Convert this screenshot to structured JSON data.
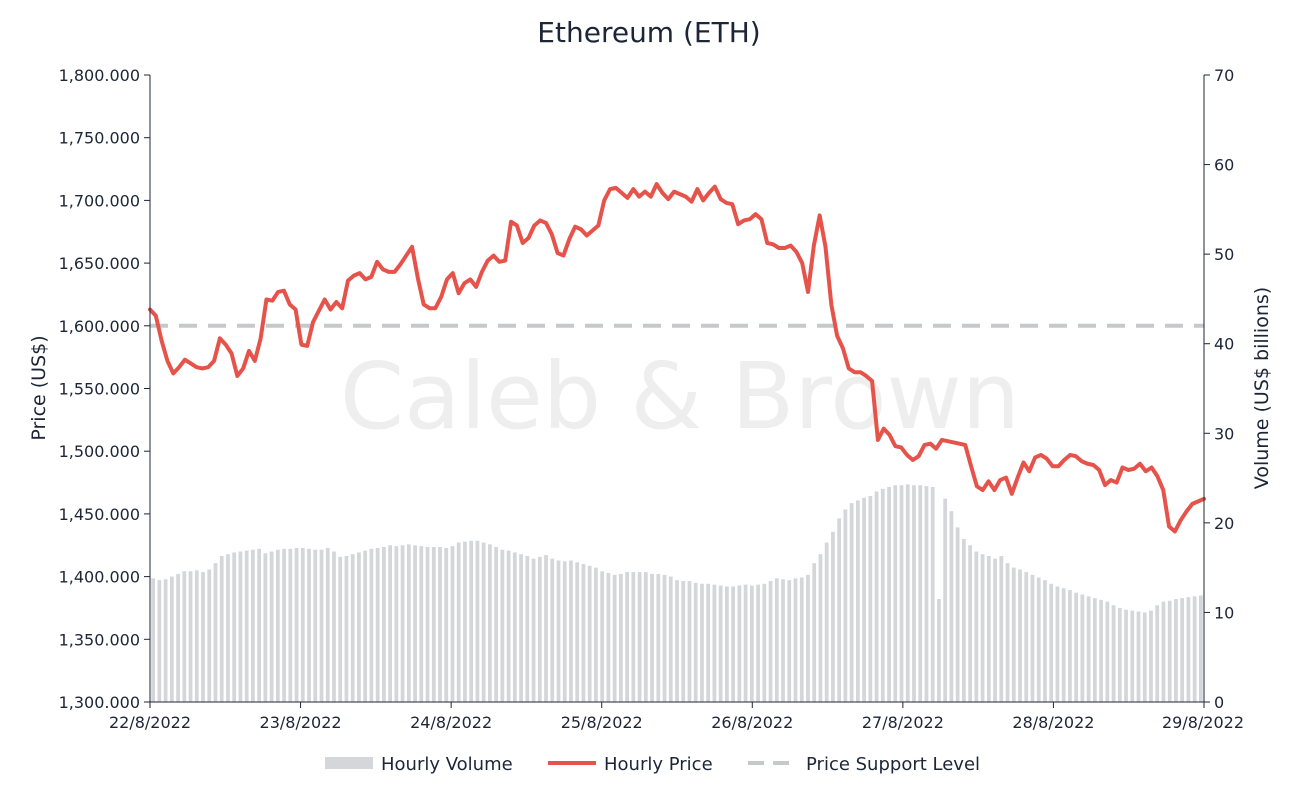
{
  "chart_data": {
    "type": "line",
    "title": "Ethereum (ETH)",
    "watermark": "Caleb & Brown",
    "y_left_label": "Price (US$)",
    "y_right_label": "Volume (US$ billions)",
    "y_left_range": [
      1300,
      1800
    ],
    "y_left_ticks": [
      "1,800.000",
      "1,750.000",
      "1,700.000",
      "1,650.000",
      "1,600.000",
      "1,550.000",
      "1,500.000",
      "1,450.000",
      "1,400.000",
      "1,350.000",
      "1,300.000"
    ],
    "y_right_range": [
      0,
      70
    ],
    "y_right_ticks": [
      "70",
      "60",
      "50",
      "40",
      "30",
      "20",
      "10",
      "0"
    ],
    "x_ticks": [
      "22/8/2022",
      "23/8/2022",
      "24/8/2022",
      "25/8/2022",
      "26/8/2022",
      "27/8/2022",
      "28/8/2022",
      "29/8/2022"
    ],
    "support_level": 1600,
    "colors": {
      "price": "#e5534b",
      "volume": "#d4d6da",
      "support": "#c6c8cc",
      "text": "#1c2636"
    },
    "series": [
      {
        "name": "Hourly Price",
        "values": [
          1613,
          1608,
          1588,
          1572,
          1562,
          1567,
          1573,
          1570,
          1567,
          1566,
          1567,
          1572,
          1590,
          1585,
          1578,
          1560,
          1566,
          1580,
          1572,
          1590,
          1621,
          1620,
          1627,
          1628,
          1617,
          1613,
          1585,
          1584,
          1603,
          1612,
          1621,
          1613,
          1619,
          1614,
          1636,
          1640,
          1642,
          1637,
          1639,
          1651,
          1645,
          1643,
          1643,
          1649,
          1656,
          1663,
          1638,
          1617,
          1614,
          1614,
          1623,
          1637,
          1642,
          1626,
          1634,
          1637,
          1631,
          1643,
          1652,
          1656,
          1651,
          1652,
          1683,
          1680,
          1666,
          1670,
          1680,
          1684,
          1682,
          1673,
          1658,
          1656,
          1669,
          1679,
          1677,
          1672,
          1676,
          1680,
          1700,
          1709,
          1710,
          1706,
          1702,
          1709,
          1703,
          1707,
          1703,
          1713,
          1706,
          1701,
          1707,
          1705,
          1703,
          1699,
          1709,
          1700,
          1706,
          1711,
          1701,
          1698,
          1697,
          1681,
          1684,
          1685,
          1689,
          1685,
          1666,
          1665,
          1662,
          1662,
          1664,
          1659,
          1650,
          1627,
          1664,
          1688,
          1663,
          1617,
          1592,
          1582,
          1566,
          1563,
          1563,
          1560,
          1556,
          1509,
          1518,
          1513,
          1504,
          1503,
          1497,
          1493,
          1496,
          1505,
          1506,
          1502,
          1509,
          1508,
          1507,
          1506,
          1505,
          1488,
          1472,
          1469,
          1476,
          1469,
          1477,
          1479,
          1466,
          1479,
          1491,
          1484,
          1495,
          1497,
          1494,
          1488,
          1488,
          1493,
          1497,
          1496,
          1492,
          1490,
          1489,
          1485,
          1473,
          1477,
          1475,
          1487,
          1485,
          1486,
          1490,
          1484,
          1487,
          1480,
          1469,
          1440,
          1436,
          1445,
          1452,
          1458,
          1460,
          1462
        ]
      },
      {
        "name": "Hourly Volume",
        "values": [
          13.8,
          13.6,
          13.7,
          14.0,
          14.3,
          14.6,
          14.6,
          14.7,
          14.5,
          14.8,
          15.5,
          16.3,
          16.5,
          16.7,
          16.8,
          16.9,
          17.0,
          17.1,
          16.6,
          16.8,
          17.0,
          17.1,
          17.1,
          17.2,
          17.2,
          17.1,
          17.0,
          17.0,
          17.2,
          16.8,
          16.2,
          16.3,
          16.5,
          16.7,
          16.9,
          17.1,
          17.2,
          17.3,
          17.5,
          17.4,
          17.5,
          17.6,
          17.5,
          17.4,
          17.3,
          17.3,
          17.3,
          17.2,
          17.4,
          17.8,
          17.9,
          18.0,
          18.0,
          17.8,
          17.6,
          17.3,
          17.0,
          16.9,
          16.7,
          16.5,
          16.3,
          16.0,
          16.2,
          16.4,
          16.0,
          15.8,
          15.7,
          15.8,
          15.6,
          15.4,
          15.2,
          15.0,
          14.6,
          14.4,
          14.2,
          14.3,
          14.5,
          14.5,
          14.5,
          14.5,
          14.3,
          14.3,
          14.2,
          14.0,
          13.6,
          13.5,
          13.5,
          13.3,
          13.2,
          13.2,
          13.1,
          13.0,
          12.9,
          12.9,
          13.0,
          13.1,
          13.0,
          13.1,
          13.2,
          13.5,
          13.8,
          13.7,
          13.6,
          13.8,
          13.9,
          14.2,
          15.5,
          16.5,
          17.8,
          19.0,
          20.5,
          21.5,
          22.2,
          22.5,
          22.8,
          23.0,
          23.5,
          23.8,
          24.0,
          24.2,
          24.2,
          24.3,
          24.2,
          24.2,
          24.1,
          24.0,
          11.5,
          22.7,
          21.3,
          19.5,
          18.2,
          17.5,
          16.8,
          16.5,
          16.3,
          16.0,
          16.3,
          15.5,
          15.0,
          14.8,
          14.5,
          14.2,
          13.9,
          13.6,
          13.2,
          12.9,
          12.7,
          12.5,
          12.2,
          12.0,
          11.8,
          11.6,
          11.4,
          11.2,
          10.8,
          10.5,
          10.3,
          10.2,
          10.1,
          10.0,
          10.2,
          10.8,
          11.2,
          11.3,
          11.5,
          11.6,
          11.7,
          11.8,
          11.9
        ]
      },
      {
        "name": "Price Support Level"
      }
    ]
  },
  "legend": [
    {
      "label": "Hourly Volume"
    },
    {
      "label": "Hourly Price"
    },
    {
      "label": "Price Support Level"
    }
  ]
}
